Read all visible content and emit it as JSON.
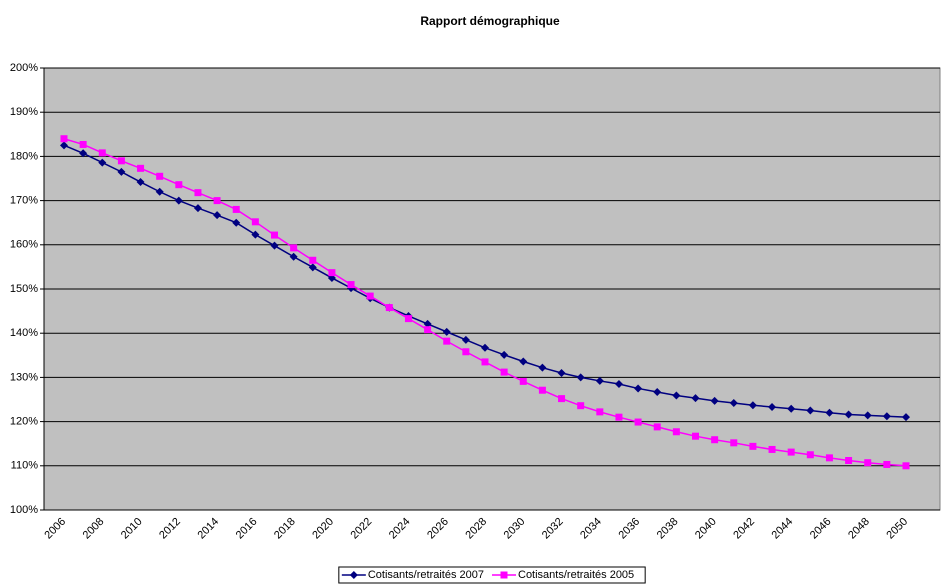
{
  "chart_data": {
    "type": "line",
    "title": "Rapport démographique",
    "categories": [
      "2006",
      null,
      "2008",
      null,
      "2010",
      null,
      "2012",
      null,
      "2014",
      null,
      "2016",
      null,
      "2018",
      null,
      "2020",
      null,
      "2022",
      null,
      "2024",
      null,
      "2026",
      null,
      "2028",
      null,
      "2030",
      null,
      "2032",
      null,
      "2034",
      null,
      "2036",
      null,
      "2038",
      null,
      "2040",
      null,
      "2042",
      null,
      "2044",
      null,
      "2046",
      null,
      "2048",
      null,
      "2050"
    ],
    "series": [
      {
        "name": "Cotisants/retraités 2007",
        "color": "#000080",
        "marker": "diamond",
        "values": [
          182.5,
          180.7,
          178.6,
          176.5,
          174.2,
          172.0,
          170.0,
          168.3,
          166.7,
          165.0,
          162.3,
          159.8,
          157.3,
          154.9,
          152.5,
          150.2,
          147.9,
          145.8,
          143.9,
          142.1,
          140.3,
          138.5,
          136.7,
          135.1,
          133.6,
          132.2,
          131.0,
          130.0,
          129.2,
          128.5,
          127.5,
          126.7,
          125.9,
          125.3,
          124.7,
          124.2,
          123.7,
          123.3,
          122.9,
          122.5,
          122.0,
          121.6,
          121.4,
          121.2,
          121.0
        ]
      },
      {
        "name": "Cotisants/retraités 2005",
        "color": "#ff00ff",
        "marker": "square",
        "values": [
          184.0,
          182.7,
          180.8,
          179.0,
          177.3,
          175.5,
          173.6,
          171.8,
          170.0,
          168.0,
          165.2,
          162.2,
          159.3,
          156.5,
          153.7,
          151.0,
          148.4,
          145.8,
          143.3,
          140.8,
          138.2,
          135.8,
          133.5,
          131.2,
          129.1,
          127.1,
          125.2,
          123.6,
          122.2,
          121.0,
          119.9,
          118.8,
          117.7,
          116.7,
          115.9,
          115.2,
          114.4,
          113.7,
          113.1,
          112.5,
          111.8,
          111.2,
          110.7,
          110.3,
          110.0
        ]
      }
    ],
    "ylim": [
      100,
      200
    ],
    "yticks": [
      {
        "value": 100,
        "label": "100%"
      },
      {
        "value": 110,
        "label": "110%"
      },
      {
        "value": 120,
        "label": "120%"
      },
      {
        "value": 130,
        "label": "130%"
      },
      {
        "value": 140,
        "label": "140%"
      },
      {
        "value": 150,
        "label": "150%"
      },
      {
        "value": 160,
        "label": "160%"
      },
      {
        "value": 170,
        "label": "170%"
      },
      {
        "value": 180,
        "label": "180%"
      },
      {
        "value": 190,
        "label": "190%"
      },
      {
        "value": 200,
        "label": "200%"
      }
    ],
    "grid": true,
    "plot_background": "#c0c0c0",
    "legend": "bottom"
  }
}
